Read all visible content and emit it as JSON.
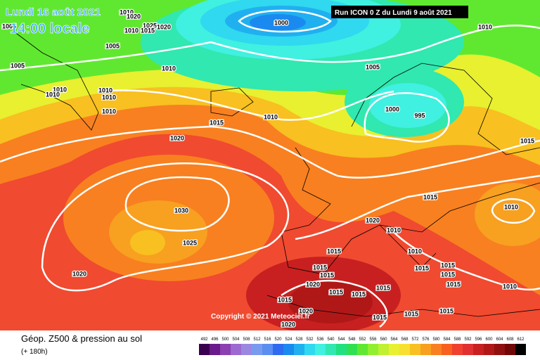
{
  "header": {
    "date": "Lundi 16 août 2021",
    "time": "14:00 locale",
    "run": "Run ICON 0 Z du Lundi 9 août 2021"
  },
  "isobar_labels": [
    "1010",
    "1020",
    "1005",
    "1025",
    "1020",
    "1015",
    "1010",
    "1000",
    "1010",
    "1005",
    "1005",
    "1010",
    "1005",
    "1010",
    "1010",
    "1010",
    "1010",
    "1010",
    "1010",
    "1000",
    "995",
    "1015",
    "1015",
    "1020",
    "1030",
    "1015",
    "1010",
    "1025",
    "1020",
    "1010",
    "1015",
    "1010",
    "1015",
    "1015",
    "1015",
    "1015",
    "1015",
    "1010",
    "1020",
    "1015",
    "1020",
    "1015",
    "1015",
    "1015",
    "1015",
    "1020",
    "1015",
    "1015",
    "1015",
    "1020"
  ],
  "copyright": "Copyright © 2021 Meteociel.fr",
  "footer": {
    "title": "Géop. Z500 & pression au sol",
    "lead": "(+ 180h)"
  },
  "scale": {
    "values": [
      492,
      496,
      500,
      504,
      508,
      512,
      516,
      520,
      524,
      528,
      532,
      536,
      540,
      544,
      548,
      552,
      556,
      560,
      564,
      568,
      572,
      576,
      580,
      584,
      588,
      592,
      596,
      600,
      604,
      608,
      612
    ],
    "colors": [
      "#3a0050",
      "#6a1a8a",
      "#8b3fb0",
      "#9c6ad0",
      "#9a88e0",
      "#7a9af0",
      "#5a8ef0",
      "#2f6bf0",
      "#1a8af0",
      "#20b0f0",
      "#30d8f0",
      "#40f0e0",
      "#30e8b0",
      "#20e080",
      "#30e050",
      "#60e830",
      "#90f030",
      "#c0f030",
      "#e8f030",
      "#f8e030",
      "#f8c020",
      "#f8a020",
      "#f88020",
      "#f86020",
      "#f04030",
      "#e03030",
      "#c82020",
      "#b01818",
      "#901010",
      "#700808",
      "#000000"
    ]
  }
}
